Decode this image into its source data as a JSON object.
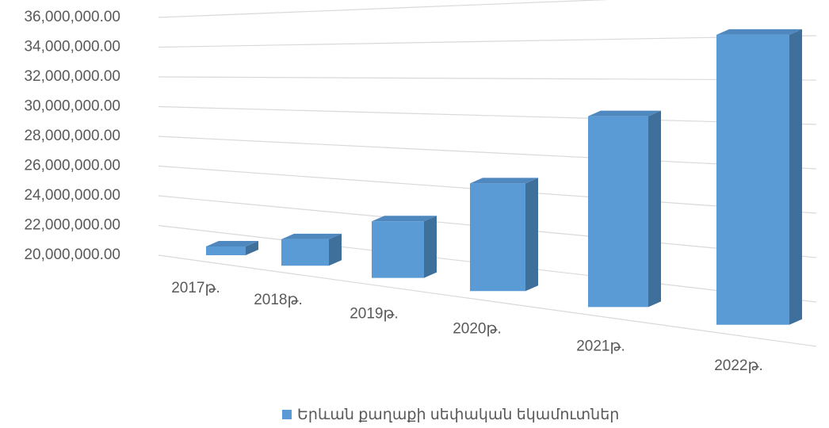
{
  "chart_data": {
    "type": "bar3d",
    "categories": [
      "2017թ.",
      "2018թ.",
      "2019թ.",
      "2020թ.",
      "2021թ.",
      "2022թ."
    ],
    "series": [
      {
        "name": "Երևան քաղաքի սեփական եկամուտներ",
        "color": "#5b9bd5",
        "values": [
          20400000,
          21600000,
          23500000,
          26500000,
          31000000,
          35800000
        ]
      }
    ],
    "ylim": [
      20000000,
      36000000
    ],
    "yticks": [
      {
        "value": 20000000,
        "label": "20,000,000.00"
      },
      {
        "value": 22000000,
        "label": "22,000,000.00"
      },
      {
        "value": 24000000,
        "label": "24,000,000.00"
      },
      {
        "value": 26000000,
        "label": "26,000,000.00"
      },
      {
        "value": 28000000,
        "label": "28,000,000.00"
      },
      {
        "value": 30000000,
        "label": "30,000,000.00"
      },
      {
        "value": 32000000,
        "label": "32,000,000.00"
      },
      {
        "value": 34000000,
        "label": "34,000,000.00"
      },
      {
        "value": 36000000,
        "label": "36,000,000.00"
      }
    ],
    "grid": true,
    "legend": "bottom"
  }
}
